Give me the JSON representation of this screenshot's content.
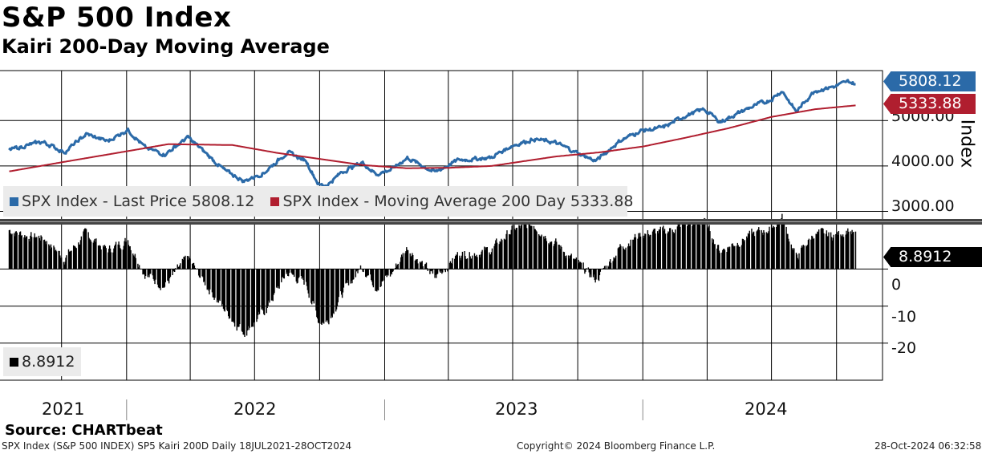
{
  "header": {
    "title": "S&P 500 Index",
    "subtitle": "Kairi 200-Day Moving Average"
  },
  "legend_top": {
    "last_price": "SPX Index - Last Price 5808.12",
    "moving_avg": "SPX Index - Moving Average 200 Day 5333.88"
  },
  "legend_bottom": {
    "kairi": "8.8912"
  },
  "tags": {
    "last_price": "5808.12",
    "moving_avg": "5333.88",
    "kairi": "8.8912"
  },
  "axis_labels": {
    "upper_title": "Index",
    "upper_ticks": [
      "5000.00",
      "4000.00",
      "3000.00"
    ],
    "lower_ticks": [
      "0",
      "-10",
      "-20"
    ],
    "years": [
      "2021",
      "2022",
      "2023",
      "2024"
    ]
  },
  "footer": {
    "source": "Source: CHARTbeat",
    "left": "SPX Index (S&P 500 INDEX) SP5 Kairi 200D  Daily 18JUL2021-28OCT2024",
    "center": "Copyright© 2024 Bloomberg Finance L.P.",
    "right": "28-Oct-2024 06:32:58"
  },
  "colors": {
    "price": "#2b6aa8",
    "moving_avg": "#b01e2f",
    "kairi": "#000000",
    "grid": "#000000",
    "legend_bg": "#ebebeb"
  },
  "chart_data": [
    {
      "type": "line",
      "ylabel": "Index",
      "ylim": [
        2850,
        6100
      ],
      "series": [
        {
          "name": "SPX Index - Last Price",
          "points": [
            [
              "2021-07-19",
              4350
            ],
            [
              "2021-08-15",
              4460
            ],
            [
              "2021-09-05",
              4530
            ],
            [
              "2021-10-05",
              4300
            ],
            [
              "2021-11-05",
              4700
            ],
            [
              "2021-12-05",
              4540
            ],
            [
              "2022-01-03",
              4800
            ],
            [
              "2022-01-28",
              4390
            ],
            [
              "2022-02-24",
              4260
            ],
            [
              "2022-03-29",
              4630
            ],
            [
              "2022-04-15",
              4390
            ],
            [
              "2022-05-20",
              3900
            ],
            [
              "2022-06-16",
              3660
            ],
            [
              "2022-07-15",
              3860
            ],
            [
              "2022-08-16",
              4300
            ],
            [
              "2022-09-12",
              4110
            ],
            [
              "2022-09-30",
              3580
            ],
            [
              "2022-10-12",
              3580
            ],
            [
              "2022-11-01",
              3860
            ],
            [
              "2022-11-30",
              4080
            ],
            [
              "2022-12-20",
              3820
            ],
            [
              "2023-01-10",
              3920
            ],
            [
              "2023-02-02",
              4180
            ],
            [
              "2023-03-13",
              3860
            ],
            [
              "2023-04-15",
              4130
            ],
            [
              "2023-05-31",
              4180
            ],
            [
              "2023-06-30",
              4450
            ],
            [
              "2023-07-31",
              4590
            ],
            [
              "2023-08-31",
              4510
            ],
            [
              "2023-09-30",
              4290
            ],
            [
              "2023-10-27",
              4110
            ],
            [
              "2023-11-30",
              4560
            ],
            [
              "2023-12-29",
              4770
            ],
            [
              "2024-01-31",
              4850
            ],
            [
              "2024-02-29",
              5100
            ],
            [
              "2024-03-28",
              5250
            ],
            [
              "2024-04-19",
              4970
            ],
            [
              "2024-05-31",
              5280
            ],
            [
              "2024-06-30",
              5460
            ],
            [
              "2024-07-16",
              5660
            ],
            [
              "2024-08-05",
              5190
            ],
            [
              "2024-08-30",
              5650
            ],
            [
              "2024-09-30",
              5760
            ],
            [
              "2024-10-18",
              5860
            ],
            [
              "2024-10-28",
              5808.12
            ]
          ]
        },
        {
          "name": "SPX Index - Moving Average 200 Day",
          "points": [
            [
              "2021-07-19",
              3880
            ],
            [
              "2021-10-01",
              4080
            ],
            [
              "2021-12-31",
              4320
            ],
            [
              "2022-03-01",
              4480
            ],
            [
              "2022-05-31",
              4460
            ],
            [
              "2022-08-01",
              4290
            ],
            [
              "2022-10-03",
              4150
            ],
            [
              "2022-12-01",
              4020
            ],
            [
              "2023-02-01",
              3950
            ],
            [
              "2023-04-03",
              3960
            ],
            [
              "2023-06-01",
              4000
            ],
            [
              "2023-09-01",
              4210
            ],
            [
              "2023-11-01",
              4300
            ],
            [
              "2024-01-02",
              4430
            ],
            [
              "2024-03-01",
              4620
            ],
            [
              "2024-05-01",
              4830
            ],
            [
              "2024-07-01",
              5080
            ],
            [
              "2024-09-01",
              5250
            ],
            [
              "2024-10-28",
              5333.88
            ]
          ]
        }
      ]
    },
    {
      "type": "bar",
      "ylabel": "",
      "ylim": [
        -30,
        12
      ],
      "series": [
        {
          "name": "SP5 Kairi 200D",
          "points": [
            [
              "2021-07-19",
              10.5
            ],
            [
              "2021-08-15",
              9.0
            ],
            [
              "2021-09-05",
              8.5
            ],
            [
              "2021-10-05",
              3.0
            ],
            [
              "2021-11-05",
              9.5
            ],
            [
              "2021-12-05",
              5.0
            ],
            [
              "2022-01-03",
              8.0
            ],
            [
              "2022-01-28",
              -1.5
            ],
            [
              "2022-02-24",
              -4.5
            ],
            [
              "2022-03-29",
              3.0
            ],
            [
              "2022-04-15",
              -2.0
            ],
            [
              "2022-05-20",
              -11.0
            ],
            [
              "2022-06-16",
              -17.0
            ],
            [
              "2022-07-15",
              -11.5
            ],
            [
              "2022-08-16",
              -1.0
            ],
            [
              "2022-09-12",
              -4.0
            ],
            [
              "2022-09-30",
              -14.0
            ],
            [
              "2022-10-12",
              -14.0
            ],
            [
              "2022-11-01",
              -7.0
            ],
            [
              "2022-11-30",
              1.0
            ],
            [
              "2022-12-20",
              -4.5
            ],
            [
              "2023-01-10",
              -1.5
            ],
            [
              "2023-02-02",
              6.0
            ],
            [
              "2023-03-13",
              -2.5
            ],
            [
              "2023-04-15",
              4.0
            ],
            [
              "2023-05-31",
              5.0
            ],
            [
              "2023-06-30",
              10.5
            ],
            [
              "2023-07-31",
              12.0
            ],
            [
              "2023-08-31",
              7.0
            ],
            [
              "2023-09-30",
              1.5
            ],
            [
              "2023-10-27",
              -3.0
            ],
            [
              "2023-11-30",
              6.0
            ],
            [
              "2023-12-29",
              9.5
            ],
            [
              "2024-01-31",
              10.0
            ],
            [
              "2024-02-29",
              12.0
            ],
            [
              "2024-03-28",
              13.0
            ],
            [
              "2024-04-19",
              5.0
            ],
            [
              "2024-05-31",
              9.0
            ],
            [
              "2024-06-30",
              11.0
            ],
            [
              "2024-07-16",
              14.0
            ],
            [
              "2024-08-05",
              3.0
            ],
            [
              "2024-08-30",
              9.5
            ],
            [
              "2024-09-30",
              9.0
            ],
            [
              "2024-10-18",
              11.0
            ],
            [
              "2024-10-28",
              8.8912
            ]
          ]
        }
      ]
    }
  ]
}
